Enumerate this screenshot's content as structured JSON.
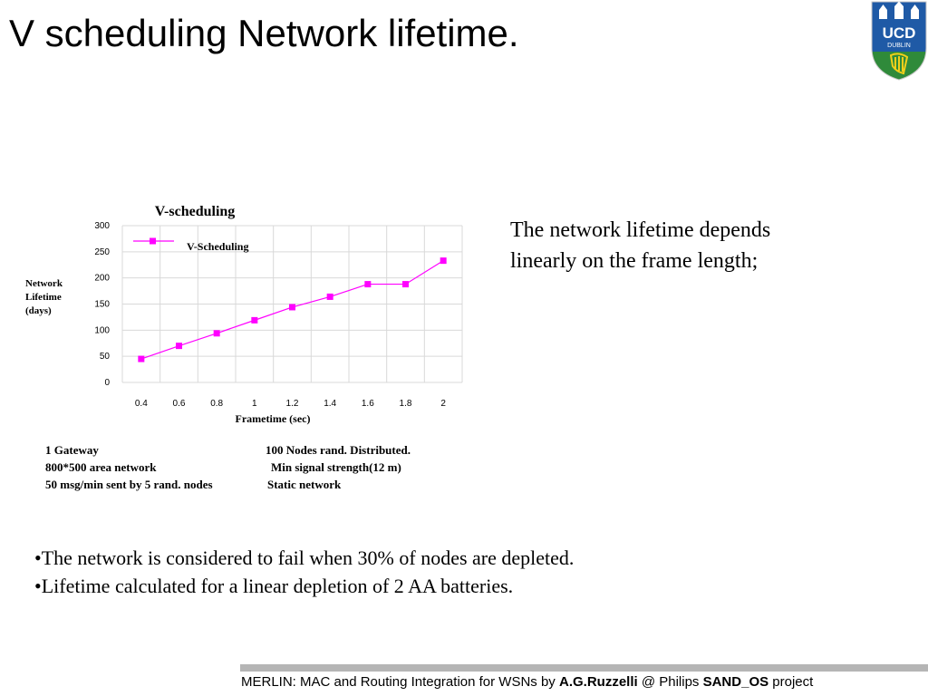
{
  "slide": {
    "title": "V scheduling Network lifetime."
  },
  "logo": {
    "text_top": "UCD",
    "text_bottom": "DUBLIN",
    "colors": {
      "top": "#1f5aa6",
      "bottom": "#2f8a3a",
      "harp": "#f2cf1a"
    }
  },
  "chart_data": {
    "type": "line",
    "title": "V-scheduling",
    "xlabel": "Frametime (sec)",
    "ylabel": "Network Lifetime (days)",
    "ylabel_lines": [
      "Network",
      "Lifetime",
      "(days)"
    ],
    "categories": [
      "0.4",
      "0.6",
      "0.8",
      "1",
      "1.2",
      "1.4",
      "1.6",
      "1.8",
      "2"
    ],
    "y_ticks": [
      "0",
      "50",
      "100",
      "150",
      "200",
      "250",
      "300"
    ],
    "ylim": [
      0,
      300
    ],
    "grid": true,
    "legend_position": "top-left",
    "series": [
      {
        "name": "V-Scheduling",
        "color": "#ff00ff",
        "values": [
          45,
          70,
          94,
          119,
          144,
          164,
          188,
          188,
          233
        ]
      }
    ]
  },
  "parameters": {
    "left": [
      "1 Gateway",
      "800*500 area network",
      "50 msg/min sent by 5 rand. nodes"
    ],
    "right": [
      "100 Nodes rand. Distributed.",
      "Min signal strength(12 m)",
      "Static network"
    ]
  },
  "side_text": "The network lifetime depends linearly on the frame length;",
  "bullets": [
    "•The network is considered to fail when 30% of nodes are depleted.",
    "•Lifetime calculated for a linear depletion of 2 AA batteries."
  ],
  "footer": {
    "part1": "MERLIN: MAC and Routing Integration for WSNs by ",
    "author": "A.G.Ruzzelli",
    "part2": " @ Philips ",
    "project": "SAND_OS",
    "part3": " project"
  }
}
